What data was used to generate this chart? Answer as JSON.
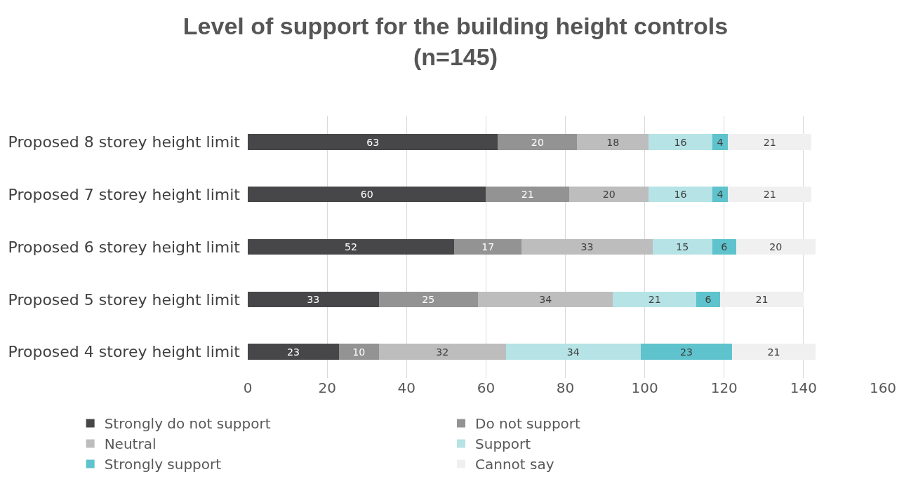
{
  "chart_data": {
    "type": "bar",
    "orientation": "horizontal",
    "stacked": true,
    "title": "Level of support for the building height controls\n(n=145)",
    "categories": [
      "Proposed 8 storey height limit",
      "Proposed 7 storey height limit",
      "Proposed 6 storey height limit",
      "Proposed 5 storey height limit",
      "Proposed 4 storey height limit"
    ],
    "series": [
      {
        "name": "Strongly do not support",
        "color": "#474749",
        "values": [
          63,
          60,
          52,
          33,
          23
        ]
      },
      {
        "name": "Do not support",
        "color": "#939393",
        "values": [
          20,
          21,
          17,
          25,
          10
        ]
      },
      {
        "name": "Neutral",
        "color": "#bdbdbd",
        "values": [
          18,
          20,
          33,
          34,
          32
        ]
      },
      {
        "name": "Support",
        "color": "#b5e3e6",
        "values": [
          16,
          16,
          15,
          21,
          34
        ]
      },
      {
        "name": "Strongly support",
        "color": "#5ec3cc",
        "values": [
          4,
          4,
          6,
          6,
          23
        ]
      },
      {
        "name": "Cannot say",
        "color": "#f0f0f0",
        "values": [
          21,
          21,
          20,
          21,
          21
        ]
      }
    ],
    "xlim": [
      0,
      160
    ],
    "xticks": [
      0,
      20,
      40,
      60,
      80,
      100,
      120,
      140,
      160
    ],
    "grid": "x",
    "legend": "bottom",
    "data_labels": true
  }
}
